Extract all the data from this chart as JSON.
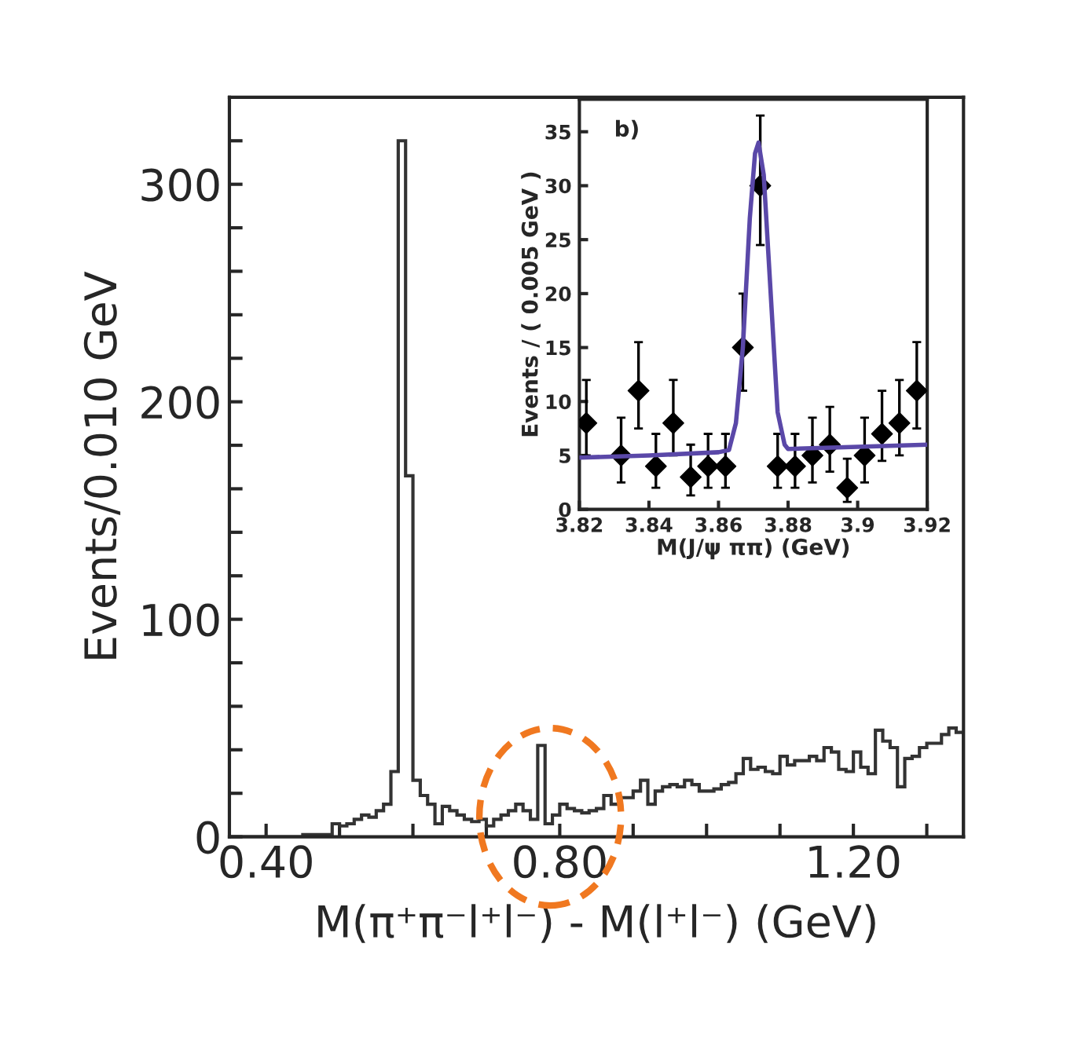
{
  "chart_data": [
    {
      "type": "histogram",
      "xlabel": "M(π⁺π⁻l⁺l⁻) - M(l⁺l⁻) (GeV)",
      "ylabel": "Events/0.010 GeV",
      "color": "#333333",
      "bins": [
        0.35,
        0.36,
        0.37,
        0.38,
        0.39,
        0.4,
        0.41,
        0.42,
        0.43,
        0.44,
        0.45,
        0.46,
        0.47,
        0.48,
        0.49,
        0.5,
        0.51,
        0.52,
        0.53,
        0.54,
        0.55,
        0.56,
        0.57,
        0.58,
        0.59,
        0.6,
        0.61,
        0.62,
        0.63,
        0.64,
        0.65,
        0.66,
        0.67,
        0.68,
        0.69,
        0.7,
        0.71,
        0.72,
        0.73,
        0.74,
        0.75,
        0.76,
        0.77,
        0.78,
        0.79,
        0.8,
        0.81,
        0.82,
        0.83,
        0.84,
        0.85,
        0.86,
        0.87,
        0.88,
        0.89,
        0.9,
        0.91,
        0.92,
        0.93,
        0.94,
        0.95,
        0.96,
        0.97,
        0.98,
        0.99,
        1.0,
        1.01,
        1.02,
        1.03,
        1.04,
        1.05,
        1.06,
        1.07,
        1.08,
        1.09,
        1.1,
        1.11,
        1.12,
        1.13,
        1.14,
        1.15,
        1.16,
        1.17,
        1.18,
        1.19,
        1.2,
        1.21,
        1.22,
        1.23,
        1.24,
        1.25,
        1.26,
        1.27,
        1.28,
        1.29,
        1.3,
        1.31,
        1.32,
        1.33,
        1.34,
        1.35
      ],
      "values": [
        0,
        0,
        0,
        0,
        0,
        0,
        0,
        0,
        0,
        0,
        1,
        1,
        1,
        1,
        6,
        5,
        6,
        8,
        10,
        9,
        12,
        15,
        30,
        320,
        166,
        26,
        19,
        15,
        6,
        14,
        12,
        10,
        8,
        7,
        8,
        5,
        8,
        10,
        12,
        15,
        12,
        8,
        42,
        6,
        10,
        15,
        13,
        12,
        11,
        12,
        13,
        19,
        15,
        18,
        18,
        21,
        26,
        15,
        21,
        23,
        24,
        23,
        26,
        24,
        21,
        21,
        22,
        24,
        25,
        29,
        36,
        31,
        32,
        30,
        29,
        37,
        33,
        35,
        35,
        37,
        35,
        41,
        39,
        31,
        30,
        39,
        32,
        29,
        49,
        44,
        41,
        23,
        36,
        37,
        41,
        43,
        43,
        47,
        50,
        48
      ],
      "xlim": [
        0.35,
        1.35
      ],
      "ylim": [
        0,
        340
      ],
      "xticks": [
        {
          "value": 0.4,
          "label": "0.40"
        },
        {
          "value": 0.5,
          "label": null
        },
        {
          "value": 0.6,
          "label": null
        },
        {
          "value": 0.7,
          "label": null
        },
        {
          "value": 0.8,
          "label": "0.80"
        },
        {
          "value": 0.9,
          "label": null
        },
        {
          "value": 1.0,
          "label": null
        },
        {
          "value": 1.1,
          "label": null
        },
        {
          "value": 1.2,
          "label": "1.20"
        },
        {
          "value": 1.3,
          "label": null
        }
      ],
      "yticks": [
        0,
        {
          "value": 20,
          "label": null
        },
        {
          "value": 40,
          "label": null
        },
        {
          "value": 60,
          "label": null
        },
        {
          "value": 80,
          "label": null
        },
        100,
        {
          "value": 120,
          "label": null
        },
        {
          "value": 140,
          "label": null
        },
        {
          "value": 160,
          "label": null
        },
        {
          "value": 180,
          "label": null
        },
        200,
        {
          "value": 220,
          "label": null
        },
        {
          "value": 240,
          "label": null
        },
        {
          "value": 260,
          "label": null
        },
        {
          "value": 280,
          "label": null
        },
        300,
        {
          "value": 320,
          "label": null
        }
      ]
    },
    {
      "type": "scatter",
      "xlabel": "M(J/ψ ππ) (GeV)",
      "ylabel": "Events / ( 0.005 GeV )",
      "annotations": [
        "b)"
      ],
      "xlim": [
        3.82,
        3.92
      ],
      "ylim": [
        0,
        38
      ],
      "xticks": [
        3.82,
        3.84,
        3.86,
        3.88,
        3.9,
        3.92
      ],
      "yticks": [
        0,
        5,
        10,
        15,
        20,
        25,
        30,
        35
      ],
      "series": [
        {
          "type": "scatter",
          "color": "#000000",
          "marker": "diamond",
          "x": [
            3.822,
            3.832,
            3.837,
            3.842,
            3.847,
            3.852,
            3.857,
            3.862,
            3.867,
            3.872,
            3.877,
            3.882,
            3.887,
            3.892,
            3.897,
            3.902,
            3.907,
            3.912,
            3.917
          ],
          "values": [
            8,
            5,
            11,
            4,
            8,
            3,
            4,
            4,
            15,
            30,
            4,
            4,
            5,
            6,
            2,
            5,
            7,
            8,
            11
          ],
          "errors": [
            [
              5,
              12
            ],
            [
              2.5,
              8.5
            ],
            [
              7.5,
              15.5
            ],
            [
              2,
              7
            ],
            [
              5,
              12
            ],
            [
              1.3,
              6
            ],
            [
              2,
              7
            ],
            [
              2,
              7
            ],
            [
              11,
              20
            ],
            [
              24.5,
              36.5
            ],
            [
              2,
              7
            ],
            [
              2,
              7
            ],
            [
              2.5,
              8.5
            ],
            [
              3.5,
              9.5
            ],
            [
              0.7,
              4.7
            ],
            [
              2.5,
              8.5
            ],
            [
              4.5,
              11
            ],
            [
              5,
              12
            ],
            [
              7.5,
              15.5
            ]
          ]
        },
        {
          "type": "line",
          "color": "#5a48a8",
          "x": [
            3.82,
            3.84,
            3.86,
            3.863,
            3.865,
            3.867,
            3.869,
            3.8705,
            3.8715,
            3.873,
            3.875,
            3.877,
            3.879,
            3.88,
            3.9,
            3.92
          ],
          "values": [
            4.8,
            5.0,
            5.3,
            5.5,
            8,
            15,
            27,
            33,
            34,
            31,
            20,
            9,
            6,
            5.6,
            5.8,
            6.0
          ]
        }
      ]
    }
  ]
}
